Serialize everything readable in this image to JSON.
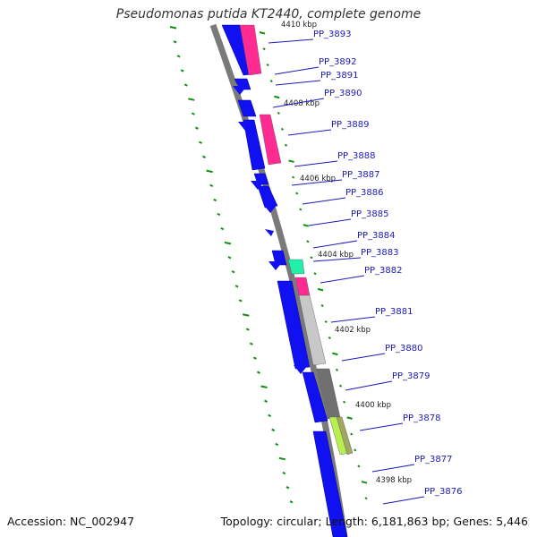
{
  "title": "Pseudomonas putida KT2440, complete genome",
  "footer": {
    "accession": "Accession: NC_002947",
    "summary": "Topology: circular; Length: 6,181,863 bp; Genes: 5,446"
  },
  "colors": {
    "backbone": "#7a7a7a",
    "forward_gene": "#1010f0",
    "reverse_pink": "#ff2a92",
    "reverse_green": "#20f0a8",
    "reverse_lightgray": "#c8c8c8",
    "reverse_darkgray": "#707070",
    "reverse_lime": "#b8ee50",
    "reverse_olive": "#a0a860",
    "label_blue": "#1a1ab8",
    "tick_green": "#109010"
  },
  "kbp_labels": [
    "4410 kbp",
    "4408 kbp",
    "4406 kbp",
    "4404 kbp",
    "4402 kbp",
    "4400 kbp",
    "4398 kbp"
  ],
  "gene_labels": [
    "PP_3893",
    "PP_3892",
    "PP_3891",
    "PP_3890",
    "PP_3889",
    "PP_3888",
    "PP_3887",
    "PP_3886",
    "PP_3885",
    "PP_3884",
    "PP_3883",
    "PP_3882",
    "PP_3881",
    "PP_3880",
    "PP_3879",
    "PP_3878",
    "PP_3877",
    "PP_3876"
  ]
}
